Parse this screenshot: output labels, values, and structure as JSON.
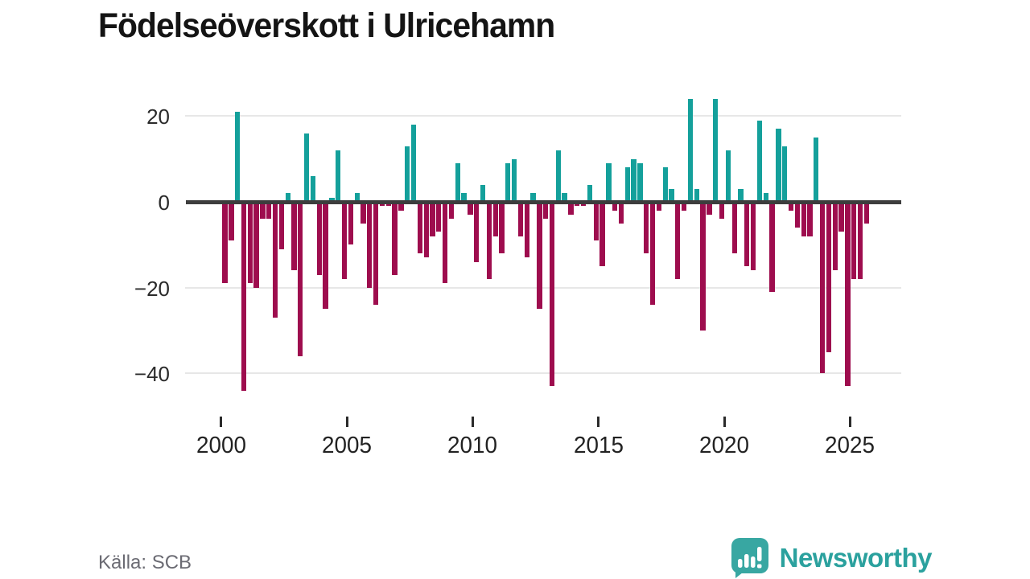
{
  "title": "Födelseöverskott i Ulricehamn",
  "source": "Källa: SCB",
  "branding": {
    "logo_text": "Newsworthy",
    "logo_icon": "newsworthy-speech-bubble-chart-icon"
  },
  "colors": {
    "positive": "#14a09b",
    "negative": "#9e0d4e",
    "axis_line": "#3d3d3d",
    "gridline": "#e7e7e7",
    "title_text": "#141414",
    "tick_text": "#2b2b2b",
    "source_text": "#6b6b73",
    "brand_teal": "#2ba19e"
  },
  "chart_data": {
    "type": "bar",
    "title": "Födelseöverskott i Ulricehamn",
    "xlabel": "",
    "ylabel": "",
    "frequency": "quarterly",
    "start_period": "2000 Q1",
    "end_period": "2025 Q3",
    "ylim": [
      -47,
      26
    ],
    "grid": "horizontal",
    "y_ticks": [
      20,
      0,
      -20,
      -40
    ],
    "y_tick_labels": [
      "20",
      "0",
      "−20",
      "−40"
    ],
    "x_tick_labels": [
      "2000",
      "2005",
      "2010",
      "2015",
      "2020",
      "2025"
    ],
    "series": [
      {
        "year": 2000,
        "q": [
          -19,
          -9,
          21,
          -44
        ]
      },
      {
        "year": 2001,
        "q": [
          -19,
          -20,
          -4,
          -4
        ]
      },
      {
        "year": 2002,
        "q": [
          -27,
          -11,
          2,
          -16
        ]
      },
      {
        "year": 2003,
        "q": [
          -36,
          16,
          6,
          -17
        ]
      },
      {
        "year": 2004,
        "q": [
          -25,
          1,
          12,
          -18
        ]
      },
      {
        "year": 2005,
        "q": [
          -10,
          2,
          -5,
          -20
        ]
      },
      {
        "year": 2006,
        "q": [
          -24,
          -1,
          -1,
          -17
        ]
      },
      {
        "year": 2007,
        "q": [
          -2,
          13,
          18,
          -12
        ]
      },
      {
        "year": 2008,
        "q": [
          -13,
          -8,
          -7,
          -19
        ]
      },
      {
        "year": 2009,
        "q": [
          -4,
          9,
          2,
          -3
        ]
      },
      {
        "year": 2010,
        "q": [
          -14,
          4,
          -18,
          -8
        ]
      },
      {
        "year": 2011,
        "q": [
          -12,
          9,
          10,
          -8
        ]
      },
      {
        "year": 2012,
        "q": [
          -13,
          2,
          -25,
          -4
        ]
      },
      {
        "year": 2013,
        "q": [
          -43,
          12,
          2,
          -3
        ]
      },
      {
        "year": 2014,
        "q": [
          -1,
          -1,
          4,
          -9
        ]
      },
      {
        "year": 2015,
        "q": [
          -15,
          9,
          -2,
          -5
        ]
      },
      {
        "year": 2016,
        "q": [
          8,
          10,
          9,
          -12
        ]
      },
      {
        "year": 2017,
        "q": [
          -24,
          -2,
          8,
          3
        ]
      },
      {
        "year": 2018,
        "q": [
          -18,
          -2,
          24,
          3
        ]
      },
      {
        "year": 2019,
        "q": [
          -30,
          -3,
          24,
          -4
        ]
      },
      {
        "year": 2020,
        "q": [
          12,
          -12,
          3,
          -15
        ]
      },
      {
        "year": 2021,
        "q": [
          -16,
          19,
          2,
          -21
        ]
      },
      {
        "year": 2022,
        "q": [
          17,
          13,
          -2,
          -6
        ]
      },
      {
        "year": 2023,
        "q": [
          -8,
          -8,
          15,
          -40
        ]
      },
      {
        "year": 2024,
        "q": [
          -35,
          -16,
          -7,
          -43
        ]
      },
      {
        "year": 2025,
        "q": [
          -18,
          -18,
          -5
        ]
      }
    ]
  }
}
